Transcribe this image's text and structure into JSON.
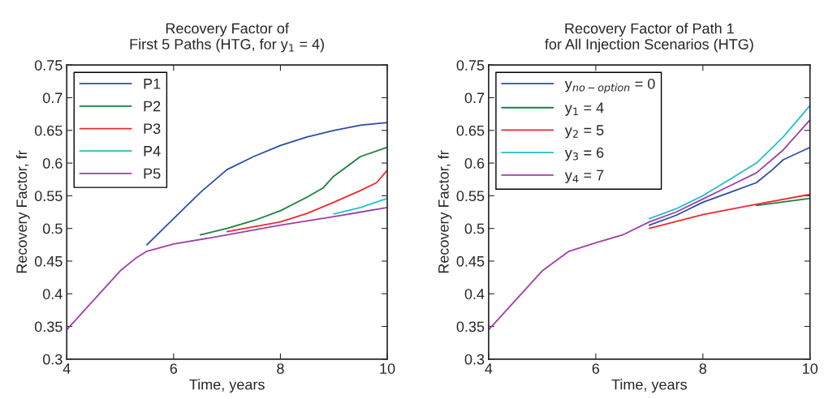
{
  "chart_data": [
    {
      "type": "line",
      "title": "Recovery Factor of\nFirst 5 Paths (HTG, for y$_{1}$ = 4)",
      "xlabel": "Time, years",
      "ylabel": "Recovery Factor, fr",
      "xlim": [
        4,
        10
      ],
      "ylim": [
        0.3,
        0.75
      ],
      "xticks": [
        4,
        6,
        8,
        10
      ],
      "yticks": [
        0.3,
        0.35,
        0.4,
        0.45,
        0.5,
        0.55,
        0.6,
        0.65,
        0.7,
        0.75
      ],
      "grid": false,
      "legend": "top left",
      "series": [
        {
          "name": "P1",
          "color": "#2b4ea8",
          "x": [
            5.5,
            6,
            6.5,
            7,
            7.5,
            8,
            8.5,
            9,
            9.5,
            10
          ],
          "values": [
            0.475,
            0.515,
            0.555,
            0.59,
            0.61,
            0.627,
            0.64,
            0.65,
            0.658,
            0.662
          ]
        },
        {
          "name": "P2",
          "color": "#1a8040",
          "x": [
            6.5,
            7,
            7.5,
            8,
            8.5,
            8.8,
            9,
            9.5,
            10
          ],
          "values": [
            0.49,
            0.5,
            0.512,
            0.527,
            0.548,
            0.562,
            0.58,
            0.61,
            0.624
          ]
        },
        {
          "name": "P3",
          "color": "#ee2a2a",
          "x": [
            7,
            8,
            8.5,
            9,
            9.5,
            9.8,
            10
          ],
          "values": [
            0.495,
            0.51,
            0.523,
            0.54,
            0.558,
            0.57,
            0.589
          ]
        },
        {
          "name": "P4",
          "color": "#22c0c8",
          "x": [
            9,
            9.5,
            10
          ],
          "values": [
            0.522,
            0.532,
            0.546
          ]
        },
        {
          "name": "P5",
          "color": "#a040a8",
          "x": [
            4,
            4.5,
            5,
            5.3,
            5.5,
            6,
            7,
            8,
            9,
            9.5,
            10
          ],
          "values": [
            0.345,
            0.39,
            0.435,
            0.455,
            0.465,
            0.476,
            0.49,
            0.505,
            0.518,
            0.525,
            0.532
          ]
        }
      ]
    },
    {
      "type": "line",
      "title": "Recovery Factor of Path 1\nfor All Injection Scenarios (HTG)",
      "xlabel": "Time, years",
      "ylabel": "Recovery Factor, fr",
      "xlim": [
        4,
        10
      ],
      "ylim": [
        0.3,
        0.75
      ],
      "xticks": [
        4,
        6,
        8,
        10
      ],
      "yticks": [
        0.3,
        0.35,
        0.4,
        0.45,
        0.5,
        0.55,
        0.6,
        0.65,
        0.7,
        0.75
      ],
      "grid": false,
      "legend": "top left",
      "series": [
        {
          "name": "y$_{no−option}$ = 0",
          "color": "#2b4ea8",
          "x": [
            7,
            7.5,
            8,
            8.5,
            9,
            9.3,
            9.5,
            10
          ],
          "values": [
            0.505,
            0.52,
            0.54,
            0.555,
            0.57,
            0.59,
            0.605,
            0.624
          ]
        },
        {
          "name": "y$_{1}$ = 4",
          "color": "#1a8040",
          "x": [
            9,
            10
          ],
          "values": [
            0.535,
            0.546
          ]
        },
        {
          "name": "y$_{2}$ = 5",
          "color": "#ee2a2a",
          "x": [
            7,
            8,
            9,
            10
          ],
          "values": [
            0.5,
            0.521,
            0.537,
            0.552
          ]
        },
        {
          "name": "y$_{3}$ = 6",
          "color": "#22c0c8",
          "x": [
            7,
            7.5,
            8,
            8.5,
            9,
            9.5,
            10
          ],
          "values": [
            0.515,
            0.53,
            0.55,
            0.575,
            0.6,
            0.64,
            0.688
          ]
        },
        {
          "name": "y$_{4}$ = 7",
          "color": "#a040a8",
          "x": [
            4,
            4.5,
            5,
            5.5,
            6,
            6.5,
            7,
            7.5,
            8,
            8.5,
            9,
            9.5,
            10
          ],
          "values": [
            0.345,
            0.39,
            0.435,
            0.465,
            0.478,
            0.49,
            0.51,
            0.525,
            0.545,
            0.565,
            0.585,
            0.62,
            0.666
          ]
        }
      ]
    }
  ]
}
